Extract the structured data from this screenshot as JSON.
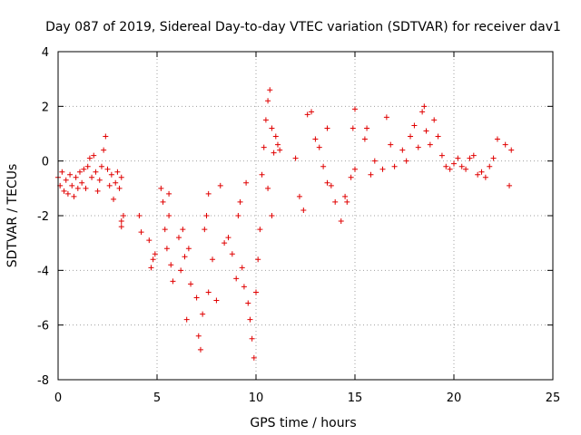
{
  "chart_data": {
    "type": "scatter",
    "title": "Day 087 of 2019, Sidereal Day-to-day VTEC variation (SDTVAR) for receiver dav1",
    "xlabel": "GPS time / hours",
    "ylabel": "SDTVAR / TECUs",
    "xlim": [
      0,
      25
    ],
    "ylim": [
      -8,
      4
    ],
    "xticks": [
      "0",
      "5",
      "10",
      "15",
      "20",
      "25"
    ],
    "yticks": [
      "4",
      "2",
      "0",
      "-2",
      "-4",
      "-6",
      "-8"
    ],
    "grid": true,
    "marker": "+",
    "color": "#e00000",
    "series": [
      {
        "name": "dav1",
        "points": [
          [
            0.0,
            -0.6
          ],
          [
            0.1,
            -0.9
          ],
          [
            0.2,
            -0.4
          ],
          [
            0.3,
            -1.1
          ],
          [
            0.4,
            -0.7
          ],
          [
            0.5,
            -1.2
          ],
          [
            0.6,
            -0.5
          ],
          [
            0.7,
            -0.9
          ],
          [
            0.8,
            -1.3
          ],
          [
            0.9,
            -0.6
          ],
          [
            1.0,
            -1.0
          ],
          [
            1.1,
            -0.4
          ],
          [
            1.2,
            -0.8
          ],
          [
            1.3,
            -0.3
          ],
          [
            1.4,
            -1.0
          ],
          [
            1.5,
            -0.2
          ],
          [
            1.6,
            0.1
          ],
          [
            1.7,
            -0.6
          ],
          [
            1.8,
            0.2
          ],
          [
            1.9,
            -0.4
          ],
          [
            2.0,
            -1.1
          ],
          [
            2.1,
            -0.7
          ],
          [
            2.2,
            -0.2
          ],
          [
            2.3,
            0.4
          ],
          [
            2.4,
            0.9
          ],
          [
            2.5,
            -0.3
          ],
          [
            2.6,
            -0.9
          ],
          [
            2.7,
            -0.5
          ],
          [
            2.8,
            -1.4
          ],
          [
            2.9,
            -0.8
          ],
          [
            3.0,
            -0.4
          ],
          [
            3.1,
            -1.0
          ],
          [
            3.2,
            -0.6
          ],
          [
            3.2,
            -2.2
          ],
          [
            3.3,
            -2.0
          ],
          [
            3.2,
            -2.4
          ],
          [
            4.1,
            -2.0
          ],
          [
            4.2,
            -2.6
          ],
          [
            4.6,
            -2.9
          ],
          [
            4.7,
            -3.9
          ],
          [
            4.8,
            -3.6
          ],
          [
            4.9,
            -3.4
          ],
          [
            5.2,
            -1.0
          ],
          [
            5.3,
            -1.5
          ],
          [
            5.4,
            -2.5
          ],
          [
            5.5,
            -3.2
          ],
          [
            5.6,
            -2.0
          ],
          [
            5.7,
            -3.8
          ],
          [
            5.8,
            -4.4
          ],
          [
            5.6,
            -1.2
          ],
          [
            6.1,
            -2.8
          ],
          [
            6.2,
            -4.0
          ],
          [
            6.3,
            -2.5
          ],
          [
            6.4,
            -3.5
          ],
          [
            6.5,
            -5.8
          ],
          [
            6.6,
            -3.2
          ],
          [
            6.7,
            -4.5
          ],
          [
            7.0,
            -5.0
          ],
          [
            7.1,
            -6.4
          ],
          [
            7.2,
            -6.9
          ],
          [
            7.3,
            -5.6
          ],
          [
            7.4,
            -2.5
          ],
          [
            7.5,
            -2.0
          ],
          [
            7.6,
            -4.8
          ],
          [
            7.6,
            -1.2
          ],
          [
            7.8,
            -3.6
          ],
          [
            8.0,
            -5.1
          ],
          [
            8.2,
            -0.9
          ],
          [
            8.4,
            -3.0
          ],
          [
            8.6,
            -2.8
          ],
          [
            8.8,
            -3.4
          ],
          [
            9.0,
            -4.3
          ],
          [
            9.1,
            -2.0
          ],
          [
            9.2,
            -1.5
          ],
          [
            9.3,
            -3.9
          ],
          [
            9.4,
            -4.6
          ],
          [
            9.5,
            -0.8
          ],
          [
            9.6,
            -5.2
          ],
          [
            9.7,
            -5.8
          ],
          [
            9.8,
            -6.5
          ],
          [
            9.9,
            -7.2
          ],
          [
            10.0,
            -4.8
          ],
          [
            10.1,
            -3.6
          ],
          [
            10.2,
            -2.5
          ],
          [
            10.3,
            -0.5
          ],
          [
            10.4,
            0.5
          ],
          [
            10.5,
            1.5
          ],
          [
            10.6,
            2.2
          ],
          [
            10.7,
            2.6
          ],
          [
            10.8,
            1.2
          ],
          [
            10.9,
            0.3
          ],
          [
            11.0,
            0.9
          ],
          [
            11.1,
            0.6
          ],
          [
            11.2,
            0.4
          ],
          [
            10.6,
            -1.0
          ],
          [
            10.8,
            -2.0
          ],
          [
            12.0,
            0.1
          ],
          [
            12.2,
            -1.3
          ],
          [
            12.4,
            -1.8
          ],
          [
            12.6,
            1.7
          ],
          [
            12.8,
            1.8
          ],
          [
            13.0,
            0.8
          ],
          [
            13.2,
            0.5
          ],
          [
            13.4,
            -0.2
          ],
          [
            13.6,
            -0.8
          ],
          [
            13.8,
            -0.9
          ],
          [
            13.6,
            1.2
          ],
          [
            14.0,
            -1.5
          ],
          [
            14.3,
            -2.2
          ],
          [
            14.5,
            -1.3
          ],
          [
            14.6,
            -1.5
          ],
          [
            14.8,
            -0.6
          ],
          [
            14.9,
            1.2
          ],
          [
            15.0,
            -0.3
          ],
          [
            15.0,
            1.9
          ],
          [
            15.5,
            0.8
          ],
          [
            15.6,
            1.2
          ],
          [
            15.8,
            -0.5
          ],
          [
            16.0,
            0.0
          ],
          [
            16.4,
            -0.3
          ],
          [
            16.6,
            1.6
          ],
          [
            16.8,
            0.6
          ],
          [
            17.0,
            -0.2
          ],
          [
            17.4,
            0.4
          ],
          [
            17.6,
            0.0
          ],
          [
            17.8,
            0.9
          ],
          [
            18.0,
            1.3
          ],
          [
            18.2,
            0.5
          ],
          [
            18.4,
            1.8
          ],
          [
            18.5,
            2.0
          ],
          [
            18.6,
            1.1
          ],
          [
            18.8,
            0.6
          ],
          [
            19.0,
            1.5
          ],
          [
            19.2,
            0.9
          ],
          [
            19.4,
            0.2
          ],
          [
            19.6,
            -0.2
          ],
          [
            19.8,
            -0.3
          ],
          [
            20.0,
            -0.1
          ],
          [
            20.2,
            0.1
          ],
          [
            20.4,
            -0.2
          ],
          [
            20.6,
            -0.3
          ],
          [
            20.8,
            0.1
          ],
          [
            21.0,
            0.2
          ],
          [
            21.2,
            -0.5
          ],
          [
            21.4,
            -0.4
          ],
          [
            21.6,
            -0.6
          ],
          [
            21.8,
            -0.2
          ],
          [
            22.0,
            0.1
          ],
          [
            22.2,
            0.8
          ],
          [
            22.6,
            0.6
          ],
          [
            22.8,
            -0.9
          ],
          [
            22.9,
            0.4
          ]
        ]
      }
    ]
  }
}
